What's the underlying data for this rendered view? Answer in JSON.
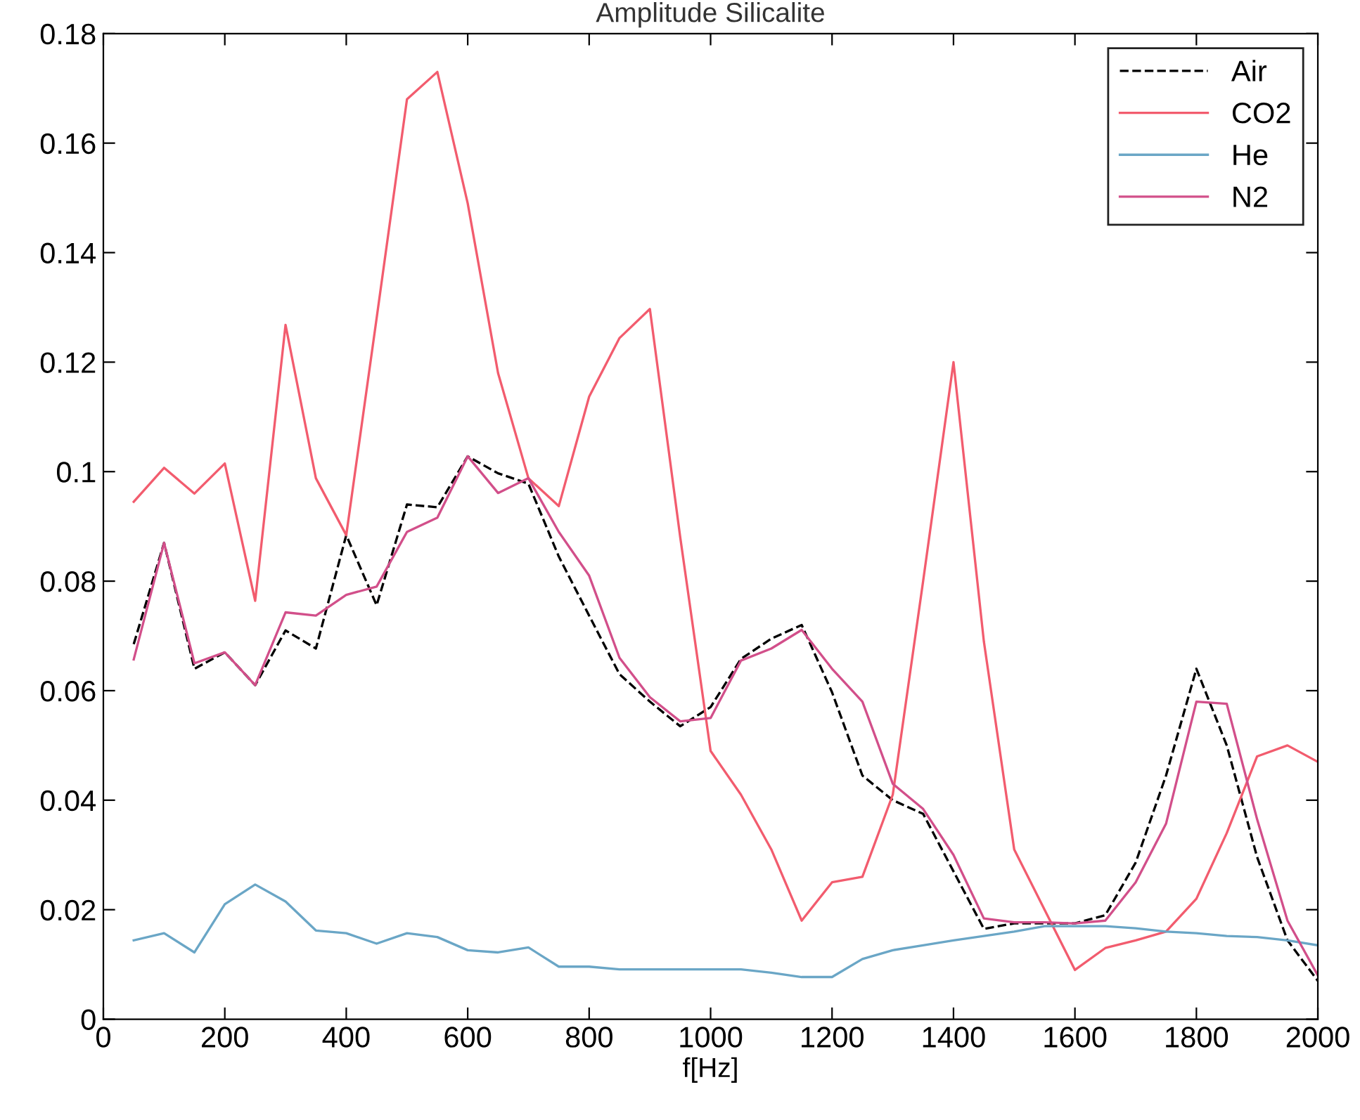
{
  "chart_data": {
    "type": "line",
    "title": "Amplitude Silicalite",
    "xlabel": "f[Hz]",
    "x": [
      50,
      100,
      150,
      200,
      250,
      300,
      350,
      400,
      450,
      500,
      550,
      600,
      650,
      700,
      750,
      800,
      850,
      900,
      950,
      1000,
      1050,
      1100,
      1150,
      1200,
      1250,
      1300,
      1350,
      1400,
      1450,
      1500,
      1550,
      1600,
      1650,
      1700,
      1750,
      1800,
      1850,
      1900,
      1950,
      2000
    ],
    "series": [
      {
        "name": "Air",
        "color": "#000000",
        "line_style": "dashed",
        "values": [
          0.0685,
          0.087,
          0.064,
          0.067,
          0.061,
          0.071,
          0.0677,
          0.0884,
          0.0756,
          0.094,
          0.0935,
          0.1028,
          0.0997,
          0.0978,
          0.0845,
          0.0737,
          0.063,
          0.058,
          0.0535,
          0.057,
          0.0658,
          0.0695,
          0.072,
          0.0597,
          0.0445,
          0.04,
          0.0375,
          0.027,
          0.0165,
          0.0175,
          0.0175,
          0.0175,
          0.019,
          0.0286,
          0.0445,
          0.064,
          0.05,
          0.0296,
          0.0144,
          0.007
        ]
      },
      {
        "name": "CO2",
        "color": "#f25c6e",
        "line_style": "solid",
        "values": [
          0.0945,
          0.1007,
          0.096,
          0.1015,
          0.0764,
          0.1268,
          0.0988,
          0.0884,
          0.128,
          0.168,
          0.173,
          0.149,
          0.118,
          0.0988,
          0.0937,
          0.1137,
          0.1244,
          0.1297,
          0.088,
          0.049,
          0.041,
          0.031,
          0.018,
          0.025,
          0.026,
          0.041,
          0.08,
          0.12,
          0.069,
          0.031,
          0.02,
          0.009,
          0.013,
          0.0144,
          0.016,
          0.022,
          0.034,
          0.048,
          0.05,
          0.047
        ]
      },
      {
        "name": "He",
        "color": "#6aa6c6",
        "line_style": "solid",
        "values": [
          0.0144,
          0.0157,
          0.0122,
          0.021,
          0.0246,
          0.0215,
          0.0162,
          0.0157,
          0.0138,
          0.0157,
          0.015,
          0.0126,
          0.0122,
          0.0131,
          0.0096,
          0.0096,
          0.0091,
          0.0091,
          0.0091,
          0.0091,
          0.0091,
          0.0085,
          0.0077,
          0.0077,
          0.011,
          0.0126,
          0.0135,
          0.0144,
          0.0152,
          0.016,
          0.017,
          0.017,
          0.017,
          0.0166,
          0.016,
          0.0157,
          0.0152,
          0.015,
          0.0144,
          0.0135
        ]
      },
      {
        "name": "N2",
        "color": "#d24f8a",
        "line_style": "solid",
        "values": [
          0.0657,
          0.087,
          0.065,
          0.067,
          0.061,
          0.0743,
          0.0737,
          0.0775,
          0.079,
          0.089,
          0.0916,
          0.1028,
          0.0961,
          0.0988,
          0.089,
          0.081,
          0.066,
          0.0588,
          0.0544,
          0.055,
          0.0655,
          0.0677,
          0.0711,
          0.064,
          0.058,
          0.043,
          0.0384,
          0.03,
          0.0184,
          0.0177,
          0.0177,
          0.0175,
          0.018,
          0.025,
          0.0357,
          0.058,
          0.0576,
          0.0365,
          0.018,
          0.008
        ]
      }
    ],
    "xlim": [
      0,
      2000
    ],
    "xticks": [
      0,
      200,
      400,
      600,
      800,
      1000,
      1200,
      1400,
      1600,
      1800,
      2000
    ],
    "ylim": [
      0,
      0.18
    ],
    "yticks": [
      0,
      0.02,
      0.04,
      0.06,
      0.08,
      0.1,
      0.12,
      0.14,
      0.16,
      0.18
    ],
    "grid": false,
    "legend": "top right",
    "marker": "none"
  }
}
